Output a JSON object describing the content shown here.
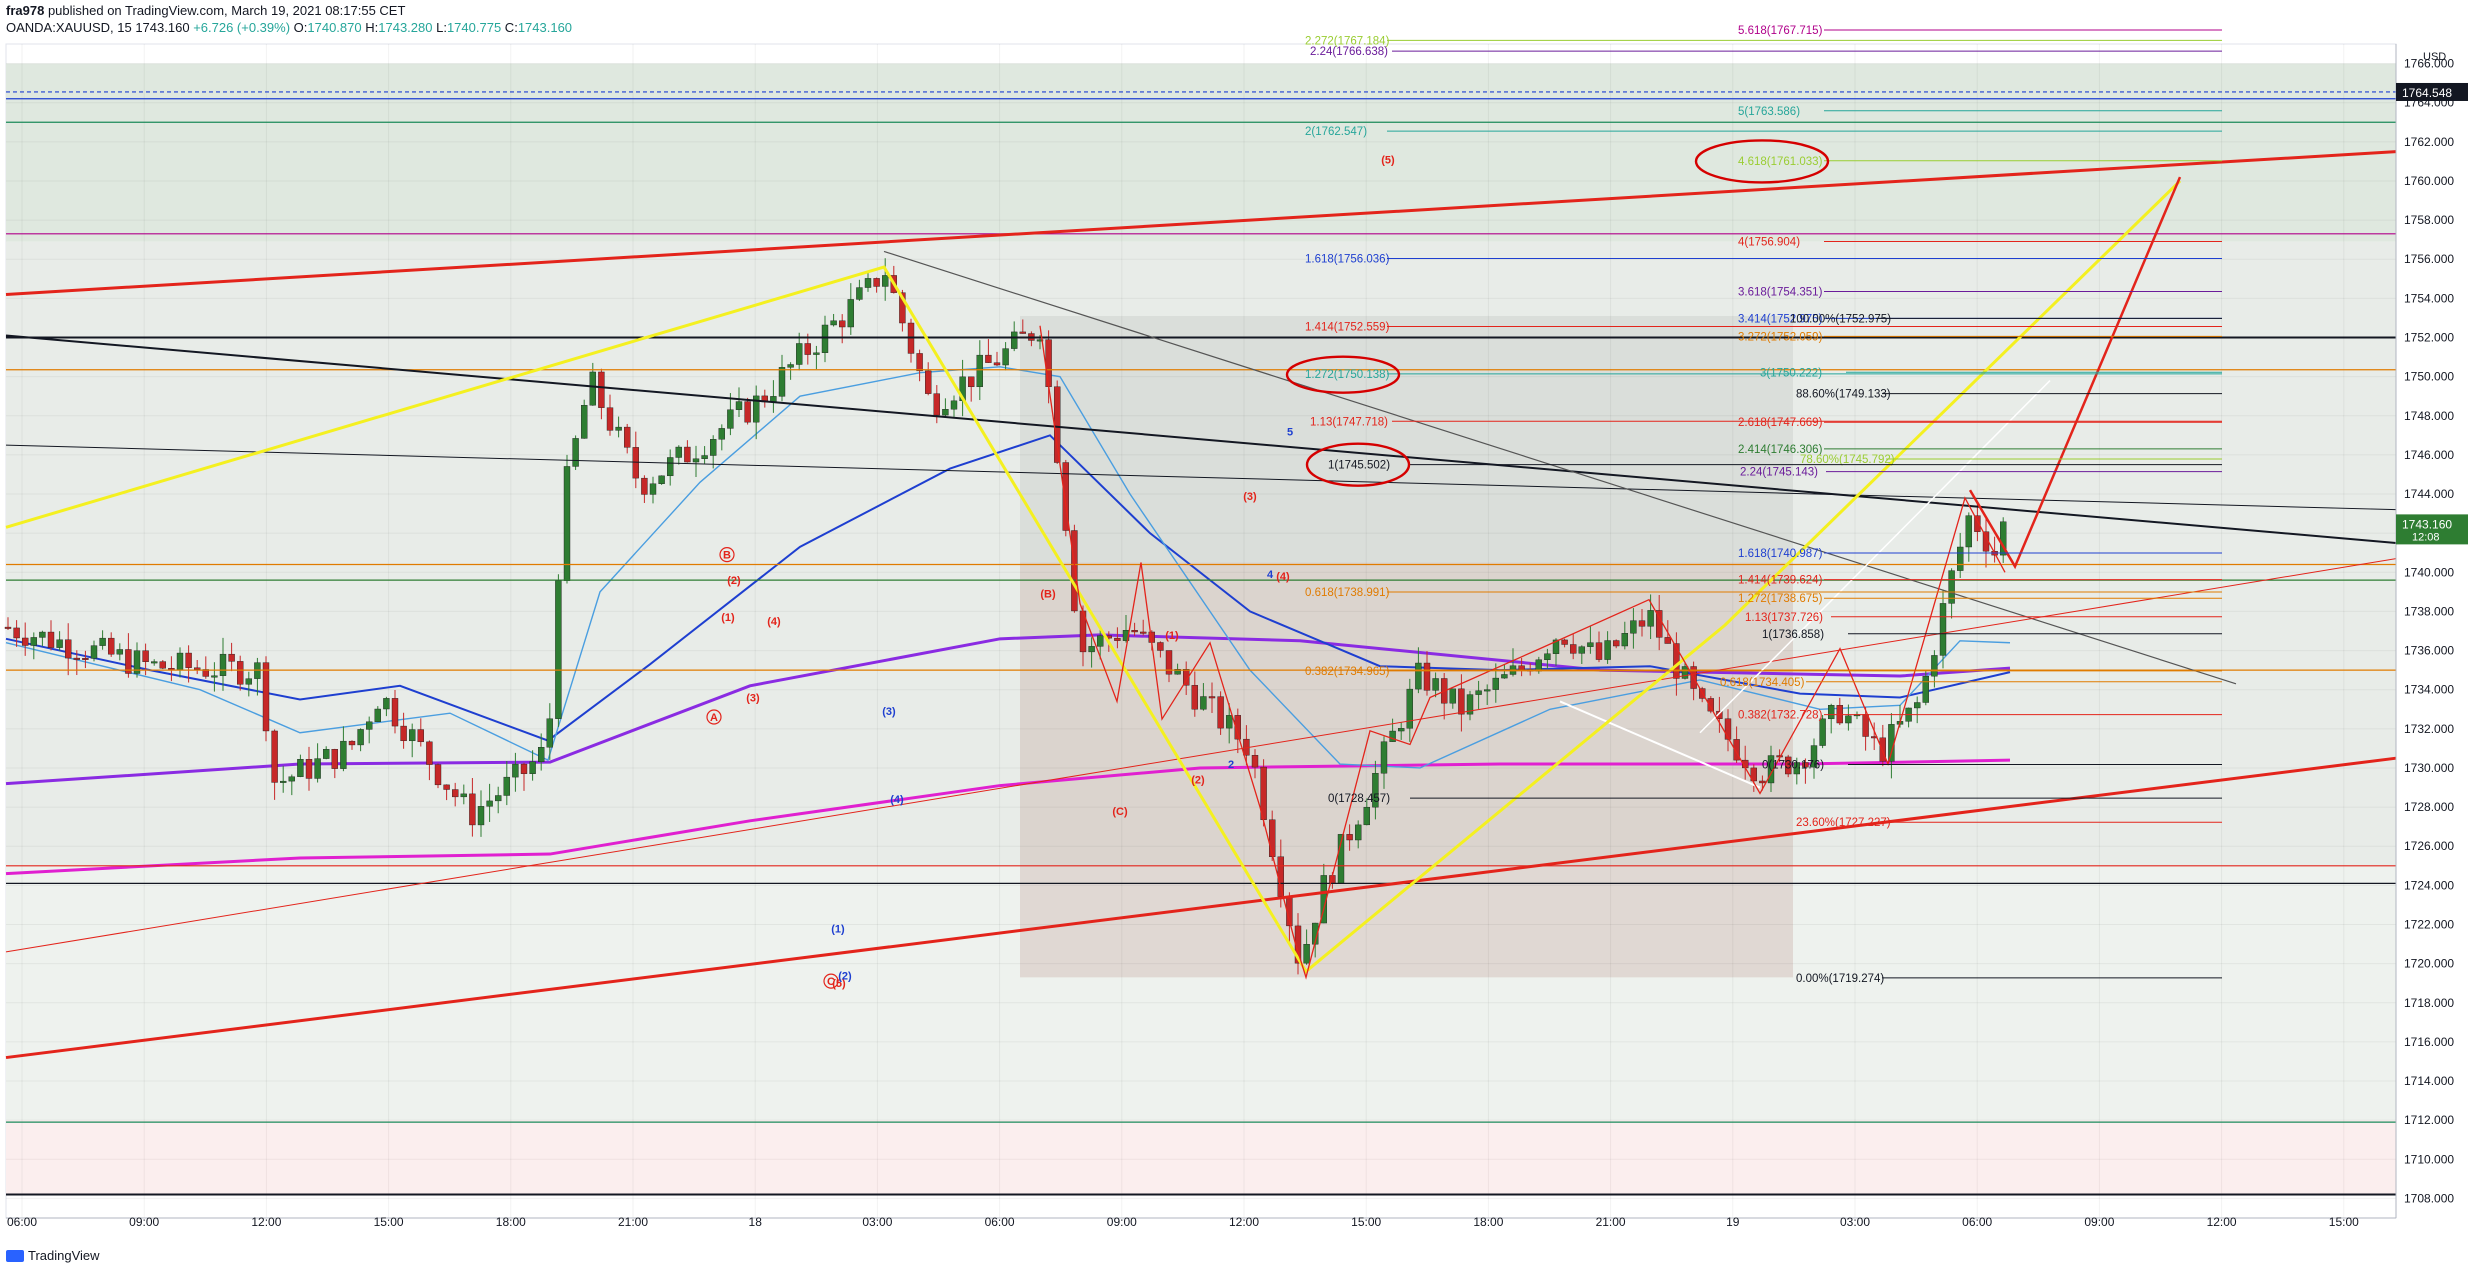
{
  "header": {
    "user": "fra978",
    "published": "published on TradingView.com, March 19, 2021 08:17:55 CET",
    "symbol": "OANDA:XAUUSD, 15",
    "last": "1743.160",
    "change": "+6.726 (+0.39%)",
    "open": "1740.870",
    "high": "1743.280",
    "low": "1740.775",
    "close": "1743.160"
  },
  "footer": {
    "brand": "TradingView"
  },
  "colors": {
    "up": "#2e7d32",
    "down": "#c62828",
    "ema_fast": "#4a9ee0",
    "ema_mid": "#1e3fd0",
    "ema_slow": "#8a2be2",
    "ma_pink": "#e020d0",
    "channel": "#e3241b",
    "wave": "#f4f020"
  },
  "chart_data": {
    "type": "candlestick",
    "currency": "USD",
    "y_range": [
      1707,
      1767
    ],
    "y_ticks": [
      1708,
      1710,
      1712,
      1714,
      1716,
      1718,
      1720,
      1722,
      1724,
      1726,
      1728,
      1730,
      1732,
      1734,
      1736,
      1738,
      1740,
      1742,
      1744,
      1746,
      1748,
      1750,
      1752,
      1754,
      1756,
      1758,
      1760,
      1762,
      1764,
      1766
    ],
    "x_ticks": [
      "06:00",
      "09:00",
      "12:00",
      "15:00",
      "18:00",
      "21:00",
      "18",
      "03:00",
      "06:00",
      "09:00",
      "12:00",
      "15:00",
      "18:00",
      "21:00",
      "19",
      "03:00",
      "06:00",
      "09:00",
      "12:00",
      "15:00"
    ],
    "price_labels": [
      {
        "price": 1764.548,
        "text": "1764.548",
        "color": "#131722"
      },
      {
        "price": 1742.5,
        "text": "1743.160",
        "sub": "12:08",
        "color": "#2e7d32"
      }
    ],
    "fib_levels": [
      {
        "text": "5.618(1767.715)",
        "price": 1767.715,
        "color": "#b0008a"
      },
      {
        "text": "2.272(1767.184)",
        "price": 1767.184,
        "color": "#9acd32"
      },
      {
        "text": "2.24(1766.638)",
        "price": 1766.638,
        "color": "#6a1b9a"
      },
      {
        "text": "5(1763.586)",
        "price": 1763.586,
        "color": "#26a69a"
      },
      {
        "text": "2(1762.547)",
        "price": 1762.547,
        "color": "#26a69a"
      },
      {
        "text": "4.618(1761.033)",
        "price": 1761.033,
        "color": "#9acd32"
      },
      {
        "text": "4(1756.904)",
        "price": 1756.904,
        "color": "#e3241b"
      },
      {
        "text": "1.618(1756.036)",
        "price": 1756.036,
        "color": "#1e3fd0"
      },
      {
        "text": "3.618(1754.351)",
        "price": 1754.351,
        "color": "#6a1b9a"
      },
      {
        "text": "3.414(1752.975)",
        "price": 1752.975,
        "color": "#1e3fd0"
      },
      {
        "text": "100.00%(1752.975)",
        "price": 1752.975,
        "color": "#131722"
      },
      {
        "text": "1.414(1752.559)",
        "price": 1752.559,
        "color": "#e3241b"
      },
      {
        "text": "3.272(1752.059)",
        "price": 1752.059,
        "color": "#e07b00"
      },
      {
        "text": "3(1750.222)",
        "price": 1750.222,
        "color": "#26a69a"
      },
      {
        "text": "1.272(1750.138)",
        "price": 1750.138,
        "color": "#26a69a"
      },
      {
        "text": "88.60%(1749.133)",
        "price": 1749.133,
        "color": "#131722"
      },
      {
        "text": "1.13(1747.718)",
        "price": 1747.718,
        "color": "#e3241b"
      },
      {
        "text": "2.618(1747.669)",
        "price": 1747.669,
        "color": "#e3241b"
      },
      {
        "text": "2.414(1746.306)",
        "price": 1746.306,
        "color": "#2e7d32"
      },
      {
        "text": "78.60%(1745.792)",
        "price": 1745.792,
        "color": "#9acd32"
      },
      {
        "text": "1(1745.502)",
        "price": 1745.502,
        "color": "#131722"
      },
      {
        "text": "2.24(1745.143)",
        "price": 1745.143,
        "color": "#6a1b9a"
      },
      {
        "text": "1.618(1740.987)",
        "price": 1740.987,
        "color": "#1e3fd0"
      },
      {
        "text": "1.414(1739.624)",
        "price": 1739.624,
        "color": "#e3241b"
      },
      {
        "text": "0.618(1738.991)",
        "price": 1738.991,
        "color": "#e07b00"
      },
      {
        "text": "1.272(1738.675)",
        "price": 1738.675,
        "color": "#e07b00"
      },
      {
        "text": "1.13(1737.726)",
        "price": 1737.726,
        "color": "#e3241b"
      },
      {
        "text": "1(1736.858)",
        "price": 1736.858,
        "color": "#131722"
      },
      {
        "text": "0.382(1734.965)",
        "price": 1734.965,
        "color": "#e07b00"
      },
      {
        "text": "0.618(1734.405)",
        "price": 1734.405,
        "color": "#e07b00"
      },
      {
        "text": "0.382(1732.728)",
        "price": 1732.728,
        "color": "#e3241b"
      },
      {
        "text": "0(1730.176)",
        "price": 1730.176,
        "color": "#131722"
      },
      {
        "text": "0(1728.457)",
        "price": 1728.457,
        "color": "#131722"
      },
      {
        "text": "23.60%(1727.227)",
        "price": 1727.227,
        "color": "#e3241b"
      },
      {
        "text": "0.00%(1719.274)",
        "price": 1719.274,
        "color": "#131722"
      }
    ],
    "wave_labels": [
      {
        "text": "A",
        "x": 714,
        "price": 1732.4,
        "color": "#e3241b",
        "circle": true
      },
      {
        "text": "B",
        "x": 727,
        "price": 1740.7,
        "color": "#e3241b",
        "circle": true
      },
      {
        "text": "C",
        "x": 831,
        "price": 1718.9,
        "color": "#e3241b",
        "circle": true
      },
      {
        "text": "(1)",
        "x": 728,
        "price": 1737.5,
        "color": "#e3241b"
      },
      {
        "text": "(2)",
        "x": 734,
        "price": 1739.4,
        "color": "#e3241b"
      },
      {
        "text": "(3)",
        "x": 753,
        "price": 1733.4,
        "color": "#e3241b"
      },
      {
        "text": "(4)",
        "x": 774,
        "price": 1737.3,
        "color": "#e3241b"
      },
      {
        "text": "(5)",
        "x": 839,
        "price": 1718.8,
        "color": "#e3241b"
      },
      {
        "text": "(1)",
        "x": 838,
        "price": 1721.6,
        "color": "#1e3fd0"
      },
      {
        "text": "(2)",
        "x": 845,
        "price": 1719.2,
        "color": "#1e3fd0"
      },
      {
        "text": "(3)",
        "x": 889,
        "price": 1732.7,
        "color": "#1e3fd0"
      },
      {
        "text": "(4)",
        "x": 897,
        "price": 1728.2,
        "color": "#1e3fd0"
      },
      {
        "text": "(B)",
        "x": 1048,
        "price": 1738.7,
        "color": "#e3241b"
      },
      {
        "text": "(C)",
        "x": 1120,
        "price": 1727.6,
        "color": "#e3241b"
      },
      {
        "text": "(1)",
        "x": 1172,
        "price": 1736.6,
        "color": "#e3241b"
      },
      {
        "text": "(2)",
        "x": 1198,
        "price": 1729.2,
        "color": "#e3241b"
      },
      {
        "text": "(3)",
        "x": 1250,
        "price": 1743.7,
        "color": "#e3241b"
      },
      {
        "text": "(4)",
        "x": 1283,
        "price": 1739.6,
        "color": "#e3241b"
      },
      {
        "text": "(5)",
        "x": 1388,
        "price": 1760.9,
        "color": "#e3241b"
      },
      {
        "text": "5",
        "x": 1290,
        "price": 1747.0,
        "color": "#1e3fd0"
      },
      {
        "text": "2",
        "x": 1231,
        "price": 1730.0,
        "color": "#1e3fd0"
      },
      {
        "text": "4",
        "x": 1270,
        "price": 1739.7,
        "color": "#1e3fd0"
      }
    ]
  }
}
